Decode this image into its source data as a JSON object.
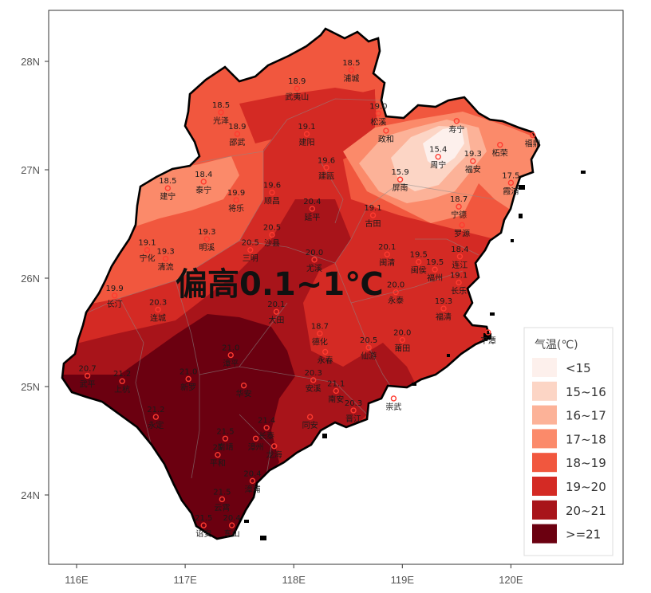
{
  "map": {
    "annotation": "偏高0.1~1℃",
    "x_ticks": [
      {
        "lon": 116,
        "label": "116E"
      },
      {
        "lon": 117,
        "label": "117E"
      },
      {
        "lon": 118,
        "label": "118E"
      },
      {
        "lon": 119,
        "label": "119E"
      },
      {
        "lon": 120,
        "label": "120E"
      }
    ],
    "y_ticks": [
      {
        "lat": 24,
        "label": "24N"
      },
      {
        "lat": 25,
        "label": "25N"
      },
      {
        "lat": 26,
        "label": "26N"
      },
      {
        "lat": 27,
        "label": "27N"
      },
      {
        "lat": 28,
        "label": "28N"
      }
    ],
    "lon_range": [
      115.75,
      121.05
    ],
    "lat_range": [
      23.35,
      28.5
    ],
    "colors": {
      "lt15": "#fdf0ec",
      "15_16": "#fcd5c5",
      "16_17": "#fcb298",
      "17_18": "#fb8a6a",
      "18_19": "#f1573e",
      "19_20": "#d42a24",
      "20_21": "#a8141a",
      "ge21": "#6b0010",
      "boundary": "#000000",
      "station": "#ff3b30"
    }
  },
  "legend": {
    "title": "气温(℃)",
    "items": [
      {
        "label": "<15",
        "color": "#fdf0ec"
      },
      {
        "label": "15~16",
        "color": "#fcd5c5"
      },
      {
        "label": "16~17",
        "color": "#fcb298"
      },
      {
        "label": "17~18",
        "color": "#fb8a6a"
      },
      {
        "label": "18~19",
        "color": "#f1573e"
      },
      {
        "label": "19~20",
        "color": "#d42a24"
      },
      {
        "label": "20~21",
        "color": "#a8141a"
      },
      {
        "label": ">=21",
        "color": "#6b0010"
      }
    ]
  },
  "stations": [
    {
      "name": "浦城",
      "value": "18.5",
      "lon": 118.53,
      "lat": 27.92
    },
    {
      "name": "武夷山",
      "value": "18.9",
      "lon": 118.03,
      "lat": 27.75
    },
    {
      "name": "光泽",
      "value": "18.5",
      "lon": 117.33,
      "lat": 27.53
    },
    {
      "name": "邵武",
      "value": "18.9",
      "lon": 117.48,
      "lat": 27.33
    },
    {
      "name": "建阳",
      "value": "19.1",
      "lon": 118.12,
      "lat": 27.33
    },
    {
      "name": "松溪",
      "value": "19.0",
      "lon": 118.78,
      "lat": 27.52
    },
    {
      "name": "政和",
      "value": "",
      "lon": 118.85,
      "lat": 27.36
    },
    {
      "name": "寿宁",
      "value": "",
      "lon": 119.5,
      "lat": 27.45
    },
    {
      "name": "柘荣",
      "value": "",
      "lon": 119.9,
      "lat": 27.23
    },
    {
      "name": "福鼎",
      "value": "",
      "lon": 120.2,
      "lat": 27.32
    },
    {
      "name": "周宁",
      "value": "15.4",
      "lon": 119.33,
      "lat": 27.12
    },
    {
      "name": "福安",
      "value": "19.3",
      "lon": 119.65,
      "lat": 27.08
    },
    {
      "name": "建瓯",
      "value": "19.6",
      "lon": 118.3,
      "lat": 27.02
    },
    {
      "name": "屏南",
      "value": "15.9",
      "lon": 118.98,
      "lat": 26.91
    },
    {
      "name": "泰宁",
      "value": "18.4",
      "lon": 117.17,
      "lat": 26.89
    },
    {
      "name": "建宁",
      "value": "18.5",
      "lon": 116.84,
      "lat": 26.83
    },
    {
      "name": "将乐",
      "value": "19.9",
      "lon": 117.47,
      "lat": 26.72
    },
    {
      "name": "顺昌",
      "value": "19.6",
      "lon": 117.8,
      "lat": 26.79
    },
    {
      "name": "霞浦",
      "value": "17.5",
      "lon": 120.0,
      "lat": 26.88
    },
    {
      "name": "宁德",
      "value": "18.7",
      "lon": 119.52,
      "lat": 26.66
    },
    {
      "name": "古田",
      "value": "19.1",
      "lon": 118.73,
      "lat": 26.58
    },
    {
      "name": "延平",
      "value": "20.4",
      "lon": 118.17,
      "lat": 26.64
    },
    {
      "name": "罗源",
      "value": "",
      "lon": 119.55,
      "lat": 26.49
    },
    {
      "name": "明溪",
      "value": "19.3",
      "lon": 117.2,
      "lat": 26.36
    },
    {
      "name": "沙县",
      "value": "20.5",
      "lon": 117.8,
      "lat": 26.4
    },
    {
      "name": "三明",
      "value": "20.5",
      "lon": 117.6,
      "lat": 26.26
    },
    {
      "name": "宁化",
      "value": "19.1",
      "lon": 116.65,
      "lat": 26.26
    },
    {
      "name": "清流",
      "value": "19.3",
      "lon": 116.82,
      "lat": 26.18
    },
    {
      "name": "闽清",
      "value": "20.1",
      "lon": 118.86,
      "lat": 26.22
    },
    {
      "name": "闽侯",
      "value": "19.5",
      "lon": 119.15,
      "lat": 26.15
    },
    {
      "name": "福州",
      "value": "19.5",
      "lon": 119.3,
      "lat": 26.08
    },
    {
      "name": "连江",
      "value": "18.4",
      "lon": 119.53,
      "lat": 26.2
    },
    {
      "name": "尤溪",
      "value": "20.0",
      "lon": 118.19,
      "lat": 26.17
    },
    {
      "name": "长乐",
      "value": "19.1",
      "lon": 119.52,
      "lat": 25.96
    },
    {
      "name": "长汀",
      "value": "19.9",
      "lon": 116.35,
      "lat": 25.84
    },
    {
      "name": "永泰",
      "value": "20.0",
      "lon": 118.94,
      "lat": 25.87
    },
    {
      "name": "连城",
      "value": "20.3",
      "lon": 116.75,
      "lat": 25.71
    },
    {
      "name": "大田",
      "value": "20.1",
      "lon": 117.84,
      "lat": 25.69
    },
    {
      "name": "福清",
      "value": "19.3",
      "lon": 119.38,
      "lat": 25.72
    },
    {
      "name": "平潭",
      "value": "",
      "lon": 119.79,
      "lat": 25.5
    },
    {
      "name": "德化",
      "value": "18.7",
      "lon": 118.24,
      "lat": 25.49
    },
    {
      "name": "仙游",
      "value": "20.5",
      "lon": 118.69,
      "lat": 25.36
    },
    {
      "name": "莆田",
      "value": "20.0",
      "lon": 119.0,
      "lat": 25.43
    },
    {
      "name": "漳平",
      "value": "21.0",
      "lon": 117.42,
      "lat": 25.29
    },
    {
      "name": "永春",
      "value": "",
      "lon": 118.29,
      "lat": 25.32
    },
    {
      "name": "武平",
      "value": "20.7",
      "lon": 116.1,
      "lat": 25.1
    },
    {
      "name": "上杭",
      "value": "21.2",
      "lon": 116.42,
      "lat": 25.05
    },
    {
      "name": "新罗",
      "value": "21.0",
      "lon": 117.03,
      "lat": 25.07
    },
    {
      "name": "安溪",
      "value": "20.3",
      "lon": 118.18,
      "lat": 25.06
    },
    {
      "name": "南安",
      "value": "21.1",
      "lon": 118.39,
      "lat": 24.96
    },
    {
      "name": "晋江",
      "value": "20.3",
      "lon": 118.55,
      "lat": 24.78
    },
    {
      "name": "崇武",
      "value": "",
      "lon": 118.92,
      "lat": 24.89
    },
    {
      "name": "永定",
      "value": "21.2",
      "lon": 116.73,
      "lat": 24.72
    },
    {
      "name": "同安",
      "value": "",
      "lon": 118.15,
      "lat": 24.72
    },
    {
      "name": "长泰",
      "value": "21.4",
      "lon": 117.75,
      "lat": 24.62
    },
    {
      "name": "华安",
      "value": "",
      "lon": 117.54,
      "lat": 25.01
    },
    {
      "name": "南靖",
      "value": "21.5",
      "lon": 117.37,
      "lat": 24.52
    },
    {
      "name": "平和",
      "value": "21",
      "lon": 117.3,
      "lat": 24.37
    },
    {
      "name": "漳州",
      "value": "",
      "lon": 117.65,
      "lat": 24.52
    },
    {
      "name": "龙海",
      "value": "",
      "lon": 117.82,
      "lat": 24.45
    },
    {
      "name": "漳浦",
      "value": "20.4",
      "lon": 117.62,
      "lat": 24.13
    },
    {
      "name": "云霄",
      "value": "21.5",
      "lon": 117.34,
      "lat": 23.96
    },
    {
      "name": "东山",
      "value": "20.4",
      "lon": 117.43,
      "lat": 23.72
    },
    {
      "name": "诏安",
      "value": "21.5",
      "lon": 117.17,
      "lat": 23.72
    }
  ]
}
